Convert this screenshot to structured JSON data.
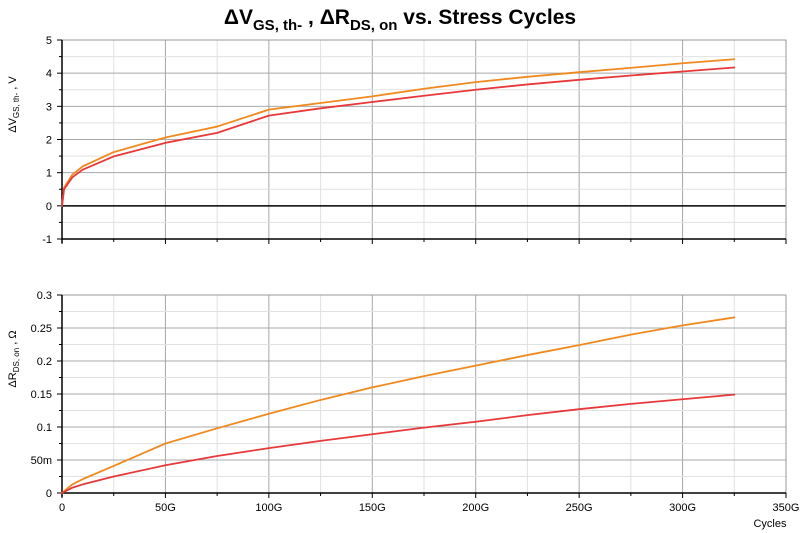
{
  "title": {
    "part1": "ΔV",
    "sub1": "GS, th-",
    "sep": " , ",
    "part2": "ΔR",
    "sub2": "DS, on",
    "part3": " vs. Stress Cycles"
  },
  "colors": {
    "background": "#ffffff",
    "grid": "#c8c8c8",
    "zero_line": "#000000",
    "series_orange": "#f08a1e",
    "series_red": "#e8393a"
  },
  "x_axis": {
    "label": "Cycles",
    "range": [
      0,
      350
    ],
    "unit_scale": "G",
    "ticks": [
      0,
      50,
      100,
      150,
      200,
      250,
      300,
      350
    ],
    "tick_labels": [
      "0",
      "50G",
      "100G",
      "150G",
      "200G",
      "250G",
      "300G",
      "350G"
    ]
  },
  "chart_data": [
    {
      "type": "line",
      "id": "vgs",
      "ylabel": {
        "main": "ΔV",
        "sub": "GS, th-",
        "suffix": " , V"
      },
      "ylim": [
        -1,
        5
      ],
      "yticks": [
        -1,
        0,
        1,
        2,
        3,
        4,
        5
      ],
      "ytick_labels": [
        "-1",
        "0",
        "1",
        "2",
        "3",
        "4",
        "5"
      ],
      "grid": true,
      "zero_line": true,
      "x": [
        0,
        1,
        5,
        10,
        25,
        50,
        75,
        100,
        125,
        150,
        175,
        200,
        225,
        250,
        275,
        300,
        325
      ],
      "series": [
        {
          "color": "#f08a1e",
          "values": [
            0,
            0.55,
            0.94,
            1.19,
            1.62,
            2.06,
            2.39,
            2.9,
            3.1,
            3.3,
            3.53,
            3.73,
            3.89,
            4.03,
            4.16,
            4.3,
            4.42
          ]
        },
        {
          "color": "#e8393a",
          "values": [
            0,
            0.5,
            0.86,
            1.09,
            1.49,
            1.9,
            2.2,
            2.72,
            2.94,
            3.13,
            3.32,
            3.5,
            3.66,
            3.8,
            3.93,
            4.05,
            4.17
          ]
        }
      ]
    },
    {
      "type": "line",
      "id": "rds",
      "ylabel": {
        "main": "ΔR",
        "sub": "DS, on",
        "suffix": " , Ω"
      },
      "ylim": [
        0,
        0.3
      ],
      "yticks": [
        0,
        0.05,
        0.1,
        0.15,
        0.2,
        0.25,
        0.3
      ],
      "ytick_labels": [
        "0",
        "50m",
        "0.1",
        "0.15",
        "0.2",
        "0.25",
        "0.3"
      ],
      "grid": true,
      "zero_line": false,
      "x": [
        0,
        5,
        10,
        25,
        50,
        75,
        100,
        125,
        150,
        175,
        200,
        225,
        250,
        275,
        300,
        325
      ],
      "series": [
        {
          "color": "#f08a1e",
          "values": [
            0,
            0.013,
            0.021,
            0.041,
            0.075,
            0.098,
            0.12,
            0.141,
            0.16,
            0.177,
            0.193,
            0.209,
            0.224,
            0.24,
            0.254,
            0.266
          ]
        },
        {
          "color": "#e8393a",
          "values": [
            0,
            0.008,
            0.013,
            0.025,
            0.042,
            0.056,
            0.068,
            0.079,
            0.089,
            0.099,
            0.108,
            0.118,
            0.127,
            0.135,
            0.142,
            0.149
          ]
        }
      ]
    }
  ]
}
